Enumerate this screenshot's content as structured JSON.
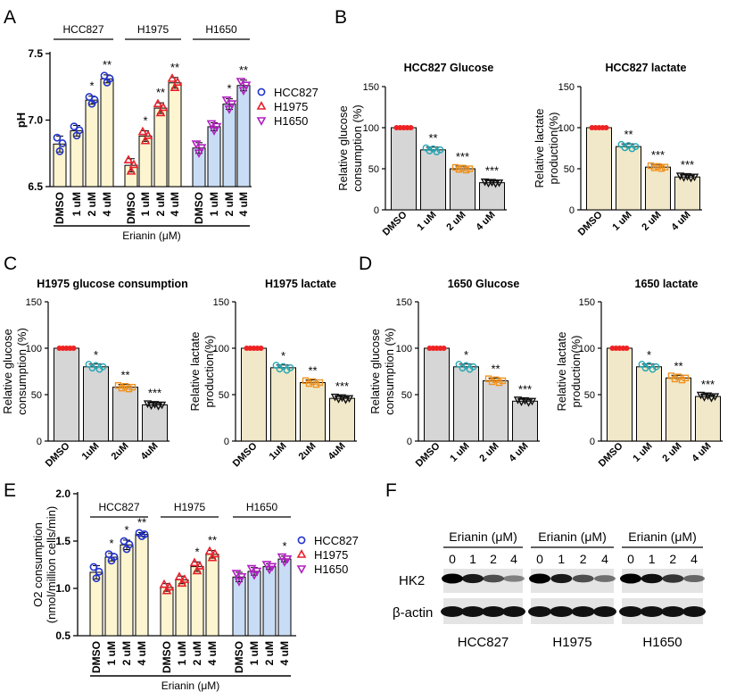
{
  "figure": {
    "panel_labels": [
      "A",
      "B",
      "C",
      "D",
      "E",
      "F"
    ]
  },
  "colors": {
    "hcc827": "#2233cc",
    "h1975": "#e8202a",
    "h1650": "#b020c0",
    "fill_hcc827": "#fdf5cf",
    "fill_h1975": "#fdf5cf",
    "fill_h1650": "#c8ddf5",
    "fill_gray": "#d6d6d6",
    "fill_tan": "#f1e8c9",
    "pt_dmso": "#ee2222",
    "pt_1": "#22a6b3",
    "pt_2": "#f0921e",
    "pt_4": "#111111"
  },
  "chart_data": [
    {
      "id": "A",
      "type": "bar",
      "title": "",
      "xlabel": "Erianin (μM)",
      "ylabel": "pH",
      "ylim": [
        6.5,
        7.5
      ],
      "yticks": [
        "6.5",
        "7.0",
        "7.5"
      ],
      "groups": [
        "HCC827",
        "H1975",
        "H1650"
      ],
      "categories": [
        "DMSO",
        "1 uM",
        "2 uM",
        "4 uM"
      ],
      "legend": [
        "HCC827",
        "H1975",
        "H1650"
      ],
      "series": [
        {
          "name": "HCC827",
          "values": [
            6.82,
            6.92,
            7.15,
            7.31
          ],
          "err": [
            0.06,
            0.04,
            0.03,
            0.03
          ],
          "sig": [
            "",
            "",
            "*",
            "**"
          ]
        },
        {
          "name": "H1975",
          "values": [
            6.66,
            6.88,
            7.09,
            7.28
          ],
          "err": [
            0.05,
            0.04,
            0.04,
            0.04
          ],
          "sig": [
            "",
            "*",
            "**",
            "**"
          ]
        },
        {
          "name": "H1650",
          "values": [
            6.79,
            6.95,
            7.12,
            7.26
          ],
          "err": [
            0.04,
            0.03,
            0.04,
            0.04
          ],
          "sig": [
            "",
            "",
            "*",
            "**"
          ]
        }
      ]
    },
    {
      "id": "B1",
      "type": "bar",
      "title": "HCC827 Glucose",
      "ylabel": [
        "Relative glucose",
        "consumption (%)"
      ],
      "ylim": [
        0,
        150
      ],
      "yticks": [
        "0",
        "50",
        "100",
        "150"
      ],
      "categories": [
        "DMSO",
        "1 uM",
        "2 uM",
        "4 uM"
      ],
      "values": [
        100,
        73,
        50,
        33
      ],
      "sig": [
        "",
        "**",
        "***",
        "***"
      ]
    },
    {
      "id": "B2",
      "type": "bar",
      "title": "HCC827 lactate",
      "ylabel": [
        "Relative lactate",
        "production(%)"
      ],
      "ylim": [
        0,
        150
      ],
      "yticks": [
        "0",
        "50",
        "100",
        "150"
      ],
      "categories": [
        "DMSO",
        "1 uM",
        "2 uM",
        "4 uM"
      ],
      "values": [
        100,
        77,
        52,
        40
      ],
      "sig": [
        "",
        "**",
        "***",
        "***"
      ]
    },
    {
      "id": "C1",
      "type": "bar",
      "title": "H1975 glucose consumption",
      "ylabel": [
        "Relative glucose",
        "consumption (%)"
      ],
      "ylim": [
        0,
        150
      ],
      "yticks": [
        "0",
        "50",
        "100",
        "150"
      ],
      "categories": [
        "DMSO",
        "1uM",
        "2uM",
        "4uM"
      ],
      "values": [
        100,
        80,
        58,
        39
      ],
      "sig": [
        "",
        "*",
        "**",
        "***"
      ]
    },
    {
      "id": "C2",
      "type": "bar",
      "title": "H1975 lactate",
      "ylabel": [
        "Relative lactate",
        "production(%)"
      ],
      "ylim": [
        0,
        150
      ],
      "yticks": [
        "0",
        "50",
        "100",
        "150"
      ],
      "categories": [
        "DMSO",
        "1uM",
        "2uM",
        "4uM"
      ],
      "values": [
        100,
        79,
        63,
        46
      ],
      "sig": [
        "",
        "*",
        "**",
        "***"
      ]
    },
    {
      "id": "D1",
      "type": "bar",
      "title": "1650 Glucose",
      "ylabel": [
        "Relative glucose",
        "consumption (%)"
      ],
      "ylim": [
        0,
        150
      ],
      "yticks": [
        "0",
        "50",
        "100",
        "150"
      ],
      "categories": [
        "DMSO",
        "1 uM",
        "2 uM",
        "4 uM"
      ],
      "values": [
        100,
        80,
        65,
        43
      ],
      "sig": [
        "",
        "*",
        "**",
        "***"
      ]
    },
    {
      "id": "D2",
      "type": "bar",
      "title": "1650 lactate",
      "ylabel": [
        "Relative lactate",
        "production(%)"
      ],
      "ylim": [
        0,
        150
      ],
      "yticks": [
        "0",
        "50",
        "100",
        "150"
      ],
      "categories": [
        "DMSO",
        "1 uM",
        "2 uM",
        "4 uM"
      ],
      "values": [
        100,
        80,
        68,
        48
      ],
      "sig": [
        "",
        "*",
        "**",
        "***"
      ]
    },
    {
      "id": "E",
      "type": "bar",
      "title": "",
      "xlabel": "Erianin (μM)",
      "ylabel": [
        "O2 consumption",
        "(nmol/million cells/min)"
      ],
      "ylim": [
        0.5,
        2.0
      ],
      "yticks": [
        "0.5",
        "1.0",
        "1.5",
        "2.0"
      ],
      "groups": [
        "HCC827",
        "H1975",
        "H1650"
      ],
      "categories": [
        "DMSO",
        "1 uM",
        "2 uM",
        "4 uM"
      ],
      "legend": [
        "HCC827",
        "H1975",
        "H1650"
      ],
      "series": [
        {
          "name": "HCC827",
          "values": [
            1.17,
            1.33,
            1.46,
            1.57
          ],
          "err": [
            0.07,
            0.04,
            0.05,
            0.02
          ],
          "sig": [
            "",
            "*",
            "*",
            "**"
          ]
        },
        {
          "name": "H1975",
          "values": [
            1.01,
            1.09,
            1.23,
            1.36
          ],
          "err": [
            0.04,
            0.04,
            0.05,
            0.04
          ],
          "sig": [
            "",
            "",
            "*",
            "**"
          ]
        },
        {
          "name": "H1650",
          "values": [
            1.12,
            1.18,
            1.23,
            1.31
          ],
          "err": [
            0.05,
            0.04,
            0.03,
            0.03
          ],
          "sig": [
            "",
            "",
            "",
            "*"
          ]
        }
      ]
    }
  ],
  "western_blot": {
    "header": "Erianin (μM)",
    "doses": [
      "0",
      "1",
      "2",
      "4"
    ],
    "rows": [
      "HK2",
      "β-actin"
    ],
    "cell_lines": [
      "HCC827",
      "H1975",
      "H1650"
    ],
    "hk2_intensity": [
      [
        1.0,
        0.85,
        0.55,
        0.25
      ],
      [
        1.0,
        0.85,
        0.55,
        0.35
      ],
      [
        1.0,
        0.9,
        0.7,
        0.4
      ]
    ]
  }
}
